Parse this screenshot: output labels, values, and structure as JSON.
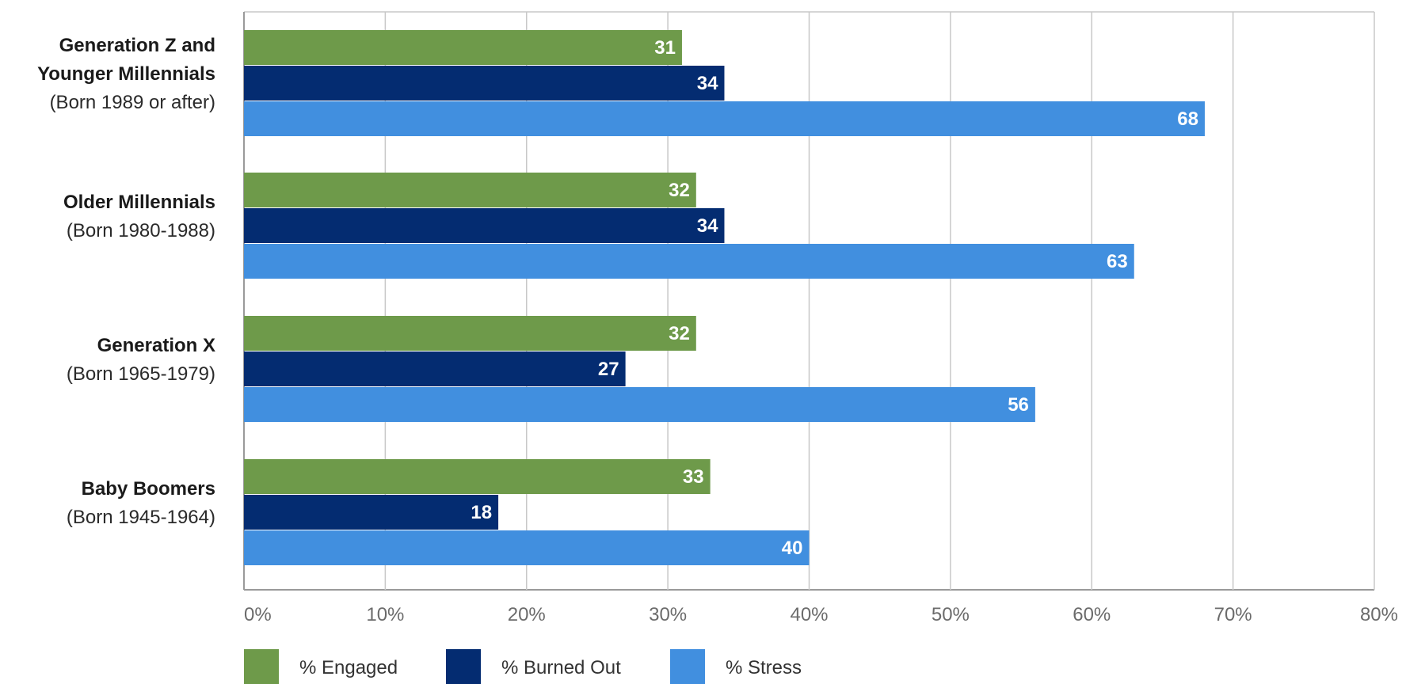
{
  "chart_data": {
    "type": "bar",
    "orientation": "horizontal",
    "categories": [
      {
        "name": "Generation Z and Younger Millennials",
        "lines": [
          "Generation Z and",
          "Younger Millennials"
        ],
        "sub": "(Born 1989 or after)"
      },
      {
        "name": "Older Millennials",
        "lines": [
          "Older Millennials"
        ],
        "sub": "(Born 1980-1988)"
      },
      {
        "name": "Generation X",
        "lines": [
          "Generation X"
        ],
        "sub": "(Born 1965-1979)"
      },
      {
        "name": "Baby Boomers",
        "lines": [
          "Baby Boomers"
        ],
        "sub": "(Born 1945-1964)"
      }
    ],
    "series": [
      {
        "name": "% Engaged",
        "color": "#6e9a4a",
        "values": [
          31,
          32,
          32,
          33
        ]
      },
      {
        "name": "% Burned Out",
        "color": "#042c71",
        "values": [
          34,
          34,
          27,
          18
        ]
      },
      {
        "name": "% Stress",
        "color": "#418fdf",
        "values": [
          68,
          63,
          56,
          40
        ]
      }
    ],
    "xlim": [
      0,
      80
    ],
    "xticks": [
      0,
      10,
      20,
      30,
      40,
      50,
      60,
      70,
      80
    ],
    "tick_suffix": "%",
    "grid": true,
    "legend_position": "bottom-left",
    "data_labels": true
  }
}
